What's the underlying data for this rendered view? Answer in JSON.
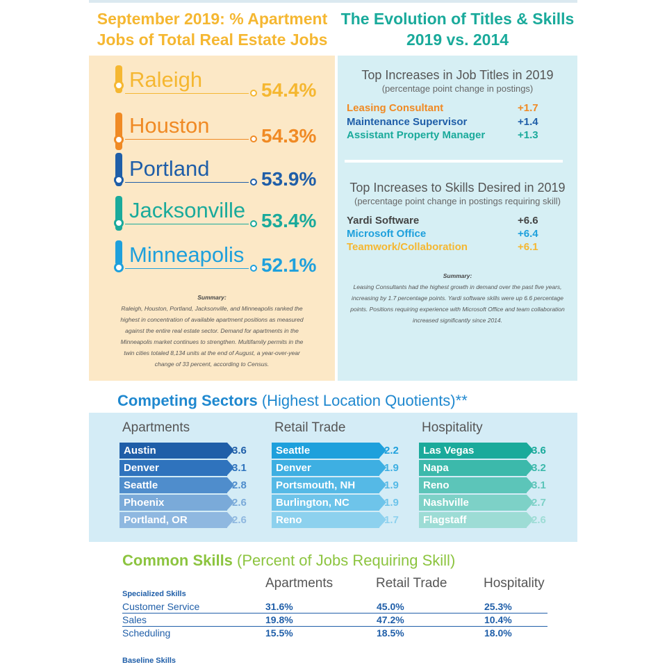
{
  "header_left": {
    "line1": "September 2019: % Apartment",
    "line2": "Jobs of Total Real Estate Jobs"
  },
  "header_right": {
    "line1": "The Evolution of Titles & Skills",
    "line2": "2019 vs. 2014"
  },
  "cities": [
    {
      "name": "Raleigh",
      "pct": "54.4%",
      "color": "#f5b731"
    },
    {
      "name": "Houston",
      "pct": "54.3%",
      "color": "#f08a24"
    },
    {
      "name": "Portland",
      "pct": "53.9%",
      "color": "#1f5ea8"
    },
    {
      "name": "Jacksonville",
      "pct": "53.4%",
      "color": "#1aaa9b"
    },
    {
      "name": "Minneapolis",
      "pct": "52.1%",
      "color": "#1ea0dc"
    }
  ],
  "left_summary": {
    "title": "Summary:",
    "lines": [
      "Raleigh, Houston, Portland, Jacksonville, and Minneapolis ranked the",
      "highest in concentration of available apartment positions as measured",
      "against the entire real estate sector. Demand for apartments in the",
      "Minneapolis market continues to strengthen. Multifamily permits in the",
      "twin cities totaled 8,134 units at the end of August, a year-over-year",
      "change of 33 percent, according to Census."
    ]
  },
  "titles_block": {
    "title": "Top Increases in Job Titles in 2019",
    "subtitle": "(percentage point change in postings)",
    "rows": [
      {
        "label": "Leasing Consultant",
        "value": "+1.7",
        "color": "#f08a24"
      },
      {
        "label": "Maintenance Supervisor",
        "value": "+1.4",
        "color": "#1f5ea8"
      },
      {
        "label": "Assistant Property Manager",
        "value": "+1.3",
        "color": "#1aaa9b"
      }
    ]
  },
  "skills_block": {
    "title": "Top Increases to Skills Desired in 2019",
    "subtitle": "(percentage point change in postings requiring skill)",
    "rows": [
      {
        "label": "Yardi Software",
        "value": "+6.6",
        "color": "#444444"
      },
      {
        "label": "Microsoft Office",
        "value": "+6.4",
        "color": "#1ea0dc"
      },
      {
        "label": "Teamwork/Collaboration",
        "value": "+6.1",
        "color": "#f5b731"
      }
    ]
  },
  "right_summary": {
    "title": "Summary:",
    "lines": [
      "Leasing Consultants had the highest growth in demand over the past five years,",
      "increasing by 1.7 percentage points. Yardi software skills were up 6.6 percentage",
      "points. Positions requiring experience with Microsoft Office and team collaboration",
      "increased significantly since 2014."
    ]
  },
  "competing": {
    "title_bold": "Competing Sectors",
    "title_rest": " (Highest Location Quotients)**",
    "columns": [
      {
        "head": "Apartments",
        "value_color": "#1f5ea8",
        "items": [
          {
            "city": "Austin",
            "value": "3.6",
            "color": "#1f5ea8"
          },
          {
            "city": "Denver",
            "value": "3.1",
            "color": "#2f73bd"
          },
          {
            "city": "Seattle",
            "value": "2.8",
            "color": "#4f8dcc"
          },
          {
            "city": "Phoenix",
            "value": "2.6",
            "color": "#7aaad9"
          },
          {
            "city": "Portland, OR",
            "value": "2.6",
            "color": "#8fb8e0"
          }
        ]
      },
      {
        "head": "Retail Trade",
        "value_color": "#1ea0dc",
        "items": [
          {
            "city": "Seattle",
            "value": "2.2",
            "color": "#1ea0dc"
          },
          {
            "city": "Denver",
            "value": "1.9",
            "color": "#3eafe2"
          },
          {
            "city": "Portsmouth, NH",
            "value": "1.9",
            "color": "#55b9e6"
          },
          {
            "city": "Burlington, NC",
            "value": "1.9",
            "color": "#6ec4ea"
          },
          {
            "city": "Reno",
            "value": "1.7",
            "color": "#8dd1ee"
          }
        ]
      },
      {
        "head": "Hospitality",
        "value_color": "#1aaa9b",
        "items": [
          {
            "city": "Las Vegas",
            "value": "3.6",
            "color": "#1aaa9b"
          },
          {
            "city": "Napa",
            "value": "3.2",
            "color": "#3cb9ab"
          },
          {
            "city": "Reno",
            "value": "3.1",
            "color": "#5cc5b9"
          },
          {
            "city": "Nashville",
            "value": "2.7",
            "color": "#7dd1c7"
          },
          {
            "city": "Flagstaff",
            "value": "2.6",
            "color": "#9ddcd5"
          }
        ]
      }
    ]
  },
  "common_skills": {
    "title_bold": "Common Skills",
    "title_rest": " (Percent of Jobs Requiring Skill)",
    "columns": [
      "Apartments",
      "Retail Trade",
      "Hospitality"
    ],
    "specialized_label": "Specialized Skills",
    "rows": [
      {
        "skill": "Customer Service",
        "values": [
          "31.6%",
          "45.0%",
          "25.3%"
        ]
      },
      {
        "skill": "Sales",
        "values": [
          "19.8%",
          "47.2%",
          "10.4%"
        ]
      },
      {
        "skill": "Scheduling",
        "values": [
          "15.5%",
          "18.5%",
          "18.0%"
        ]
      }
    ],
    "baseline_label": "Baseline Skills"
  }
}
